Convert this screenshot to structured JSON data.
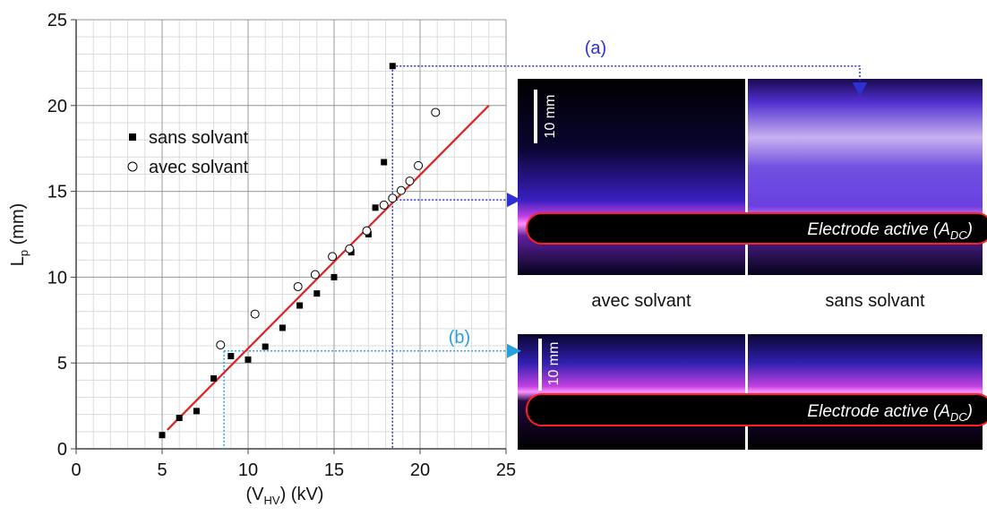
{
  "chart_data": {
    "type": "scatter",
    "x_label_parts": [
      "(V",
      "HV",
      ") (kV)"
    ],
    "y_label_parts": [
      "L",
      "p",
      " (mm)"
    ],
    "xlim": [
      0,
      25
    ],
    "ylim": [
      0,
      25
    ],
    "xticks": [
      0,
      5,
      10,
      15,
      20,
      25
    ],
    "yticks": [
      0,
      5,
      10,
      15,
      20,
      25
    ],
    "minor_step": 1,
    "grid": true,
    "series": [
      {
        "name": "sans solvant",
        "marker": "square",
        "color": "#000000",
        "x": [
          5,
          6,
          7,
          8,
          9,
          10,
          11,
          12,
          13,
          14,
          15,
          16,
          17,
          17.4,
          17.9,
          18.4
        ],
        "values": [
          0.8,
          1.8,
          2.2,
          4.1,
          5.4,
          5.2,
          5.95,
          7.05,
          8.35,
          9.05,
          10.0,
          11.45,
          12.5,
          14.05,
          16.7,
          22.3
        ]
      },
      {
        "name": "avec solvant",
        "marker": "circle",
        "color": "#000000",
        "x": [
          8.4,
          10.4,
          12.9,
          13.9,
          14.9,
          15.9,
          16.9,
          17.9,
          18.4,
          18.9,
          19.4,
          19.9,
          20.9
        ],
        "values": [
          6.05,
          7.85,
          9.45,
          10.15,
          11.2,
          11.65,
          12.7,
          14.2,
          14.6,
          15.05,
          15.6,
          16.5,
          19.6
        ]
      }
    ],
    "fit_line": {
      "color": "#e02020",
      "x": [
        5.3,
        24
      ],
      "values": [
        1.1,
        20
      ]
    },
    "guides": [
      {
        "label": "(a)",
        "color": "#2f2fd6",
        "x": 18.4,
        "y_top": 22.3,
        "y_level": 14.5
      },
      {
        "label": "(b)",
        "color": "#2a9fe0",
        "x": 8.6,
        "y_top": 5.7,
        "y_level": 5.7
      }
    ]
  },
  "images": {
    "top": {
      "scale": "10 mm",
      "electrode": [
        "Electrode active (A",
        "DC",
        ")"
      ]
    },
    "captions": [
      "avec solvant",
      "sans solvant"
    ],
    "bottom": {
      "scale": "10 mm",
      "electrode": [
        "Electrode active (A",
        "DC",
        ")"
      ]
    }
  }
}
